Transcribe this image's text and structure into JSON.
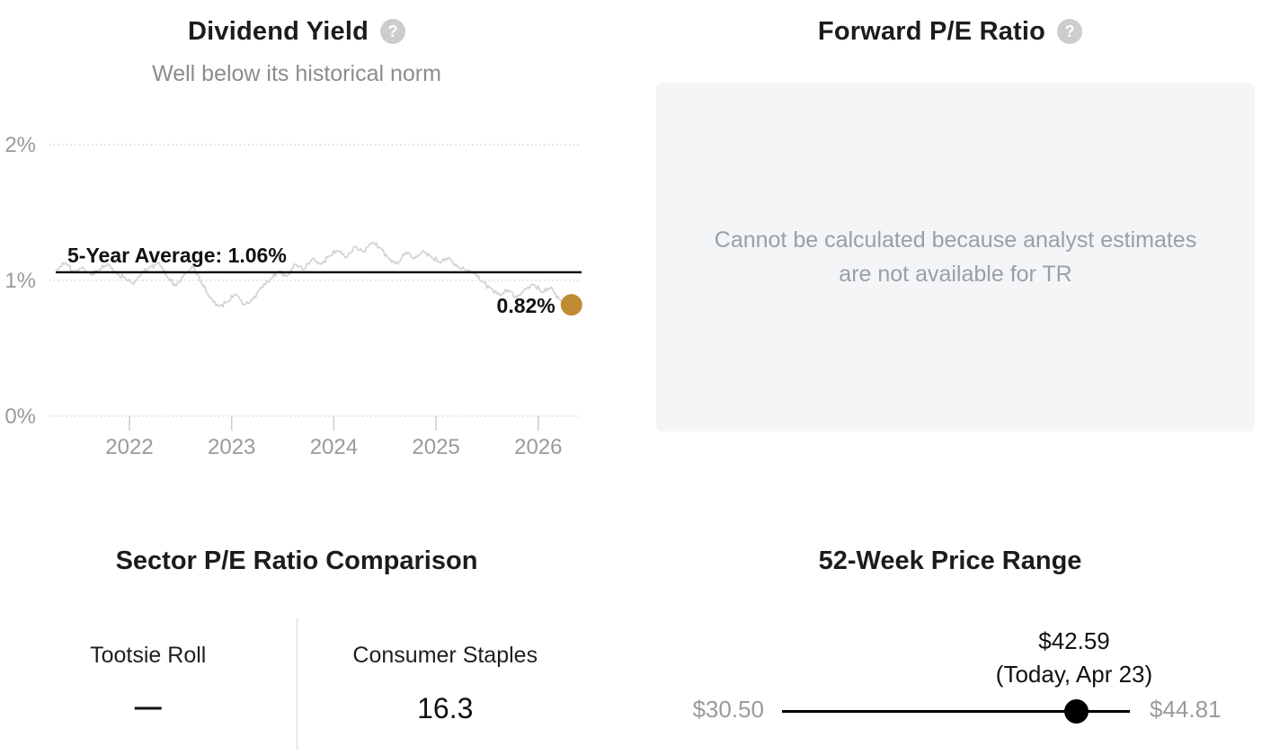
{
  "dividend_yield": {
    "title": "Dividend Yield",
    "help_icon": "?",
    "subtitle": "Well below its historical norm"
  },
  "forward_pe": {
    "title": "Forward P/E Ratio",
    "help_icon": "?",
    "message": "Cannot be calculated because analyst estimates are not available for TR"
  },
  "sector_pe": {
    "title": "Sector P/E Ratio Comparison",
    "columns": [
      {
        "name": "Tootsie Roll",
        "value": "—"
      },
      {
        "name": "Consumer Staples",
        "value": "16.3"
      }
    ]
  },
  "price_range": {
    "title": "52-Week Price Range",
    "current_price": "$42.59",
    "current_date": "(Today, Apr 23)",
    "low": "$30.50",
    "high": "$44.81",
    "position_fraction": 0.845
  },
  "colors": {
    "accent_gold": "#c08c33",
    "series_line": "#d3d3d3",
    "average_line": "#000000",
    "axis_text": "#9a9a9a",
    "muted_text": "#8c8c8c",
    "na_box_bg": "#f4f5f7",
    "na_box_text": "#9aa0a8",
    "slider": "#000000"
  },
  "chart_data": {
    "type": "line",
    "title": "Dividend Yield",
    "series_name": "TR dividend yield (%)",
    "x_start": 2021.29,
    "x_step": 0.083333,
    "values": [
      1.08,
      1.13,
      1.06,
      1.1,
      1.04,
      1.08,
      1.12,
      1.05,
      1.02,
      0.97,
      1.06,
      1.1,
      1.13,
      1.02,
      0.96,
      1.05,
      1.1,
      0.98,
      0.87,
      0.81,
      0.84,
      0.9,
      0.82,
      0.86,
      0.95,
      1.0,
      1.07,
      1.03,
      1.12,
      1.08,
      1.16,
      1.12,
      1.18,
      1.22,
      1.17,
      1.25,
      1.21,
      1.28,
      1.24,
      1.16,
      1.12,
      1.21,
      1.16,
      1.22,
      1.17,
      1.13,
      1.17,
      1.1,
      1.08,
      1.05,
      0.99,
      0.94,
      0.89,
      0.93,
      0.87,
      0.94,
      0.97,
      0.91,
      0.95,
      0.86,
      0.82
    ],
    "x_ticks": [
      2022,
      2023,
      2024,
      2025,
      2026
    ],
    "y_ticks": [
      {
        "value": 0,
        "label": "0%"
      },
      {
        "value": 1,
        "label": "1%"
      },
      {
        "value": 2,
        "label": "2%"
      }
    ],
    "ylim": [
      0,
      2.2
    ],
    "grid": "horizontal-dotted",
    "legend": "none",
    "average": {
      "label": "5-Year Average: 1.06%",
      "value": 1.06
    },
    "last_point": {
      "label": "0.82%",
      "value": 0.82
    },
    "line_color": "#d3d3d3",
    "marker_color": "#c08c33"
  }
}
